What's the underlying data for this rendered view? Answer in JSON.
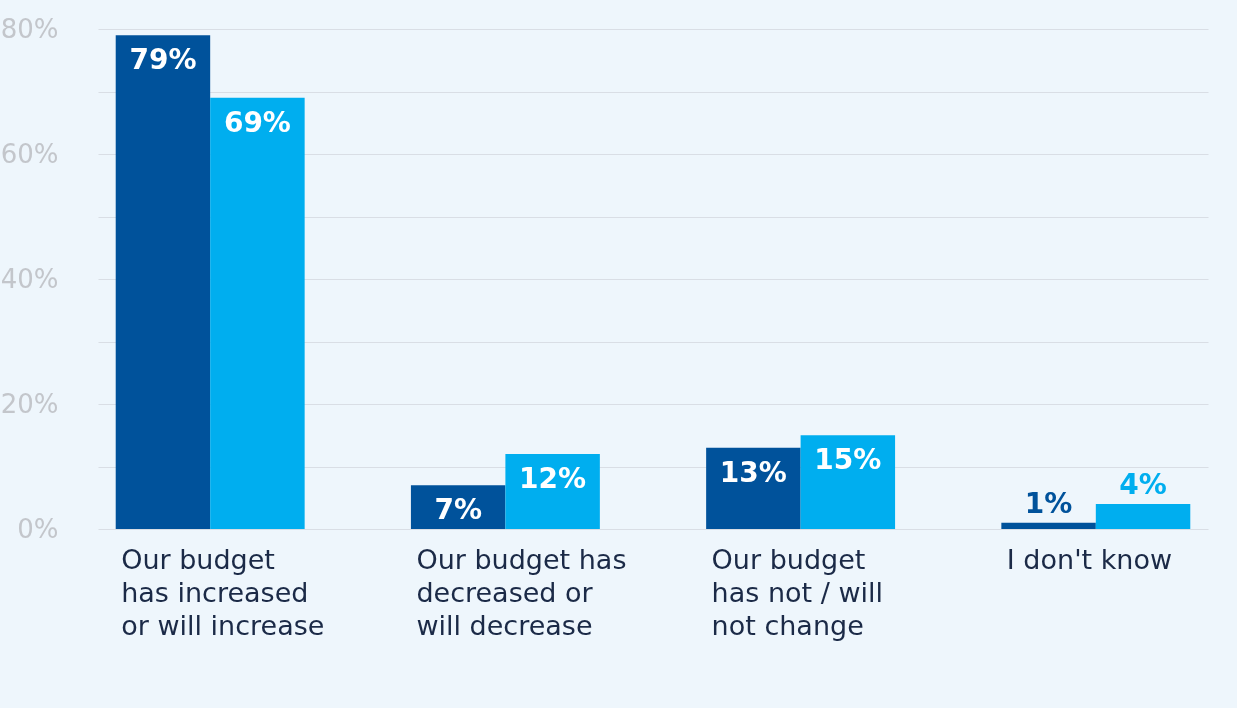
{
  "chart_data": {
    "type": "bar",
    "categories": [
      "Our budget\nhas increased\nor will increase",
      "Our budget has\ndecreased or\nwill decrease",
      "Our budget\nhas not / will\nnot change",
      "I don't know"
    ],
    "series": [
      {
        "color": "#00529b",
        "values": [
          79,
          7,
          13,
          1
        ],
        "value_labels": [
          "79%",
          "7%",
          "13%",
          "1%"
        ]
      },
      {
        "color": "#00aeef",
        "values": [
          69,
          12,
          15,
          4
        ],
        "value_labels": [
          "69%",
          "12%",
          "15%",
          "4%"
        ]
      }
    ],
    "ylim": [
      0,
      80
    ],
    "yticks": [
      {
        "value": 0,
        "label": "0%"
      },
      {
        "value": 10,
        "label": null
      },
      {
        "value": 20,
        "label": "20%"
      },
      {
        "value": 30,
        "label": null
      },
      {
        "value": 40,
        "label": "40%"
      },
      {
        "value": 50,
        "label": null
      },
      {
        "value": 60,
        "label": "60%"
      },
      {
        "value": 70,
        "label": null
      },
      {
        "value": 80,
        "label": "80%"
      }
    ],
    "grid": "y",
    "legend": false
  }
}
